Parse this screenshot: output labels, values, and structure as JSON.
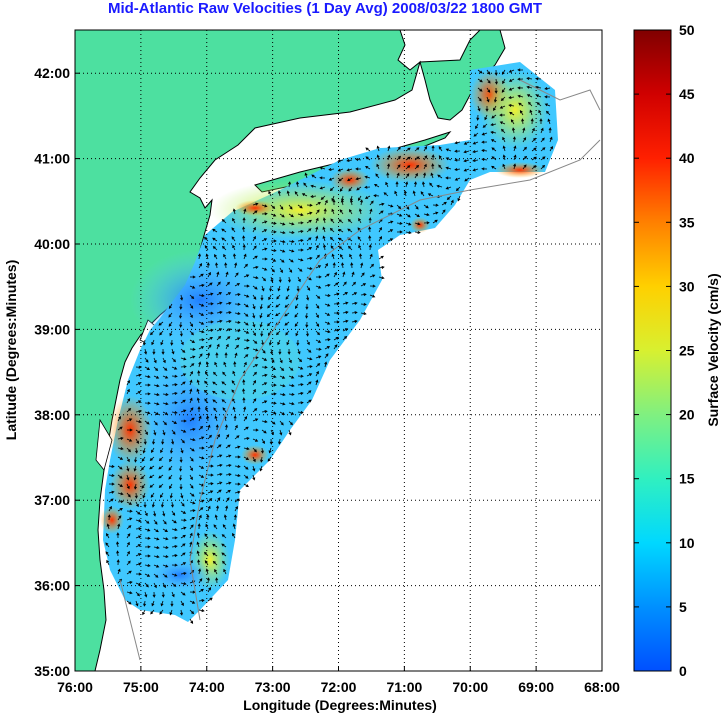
{
  "title": "Mid-Atlantic Raw Velocities (1 Day Avg) 2008/03/22 1800 GMT",
  "xlabel": "Longitude (Degrees:Minutes)",
  "ylabel": "Latitude (Degrees:Minutes)",
  "colorbar_label": "Surface Velocity (cm/s)",
  "x_ticks": [
    "76:00",
    "75:00",
    "74:00",
    "73:00",
    "72:00",
    "71:00",
    "70:00",
    "69:00",
    "68:00"
  ],
  "y_ticks": [
    "35:00",
    "36:00",
    "37:00",
    "38:00",
    "39:00",
    "40:00",
    "41:00",
    "42:00"
  ],
  "colorbar_ticks": [
    "0",
    "5",
    "10",
    "15",
    "20",
    "25",
    "30",
    "35",
    "40",
    "45",
    "50"
  ],
  "colors": {
    "land": "#4de0a0",
    "coast": "#000000",
    "bathymetry": "#888888",
    "grid": "#000000",
    "title": "#1a1aff"
  },
  "colorbar_range": [
    0,
    50
  ]
}
